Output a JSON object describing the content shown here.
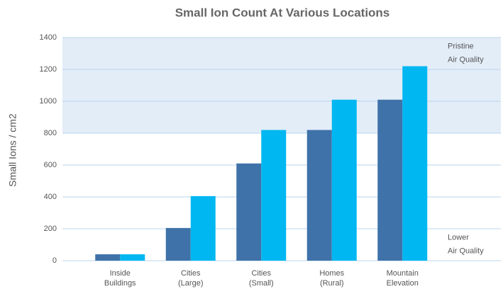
{
  "chart_data": {
    "type": "bar",
    "title": "Small Ion Count At Various Locations",
    "y_label": "Small Ions / cm2",
    "categories": [
      [
        "Inside",
        "Buildings"
      ],
      [
        "Cities",
        "(Large)"
      ],
      [
        "Cities",
        "(Small)"
      ],
      [
        "Homes",
        "(Rural)"
      ],
      [
        "Mountain",
        "Elevation"
      ]
    ],
    "series": [
      {
        "color": "#3f72a8",
        "values": [
          40,
          205,
          610,
          820,
          1010
        ]
      },
      {
        "color": "#00b7f1",
        "values": [
          40,
          405,
          820,
          1010,
          1220
        ]
      }
    ],
    "ylim": [
      0,
      1400
    ],
    "yticks": [
      0,
      200,
      400,
      600,
      800,
      1000,
      1200,
      1400
    ],
    "grid": true,
    "shaded_range": [
      800,
      1400
    ],
    "shade_color": "#e3edf8",
    "annotations": [
      {
        "text": [
          "Pristine",
          "Air Quality"
        ],
        "y": 1300
      },
      {
        "text": [
          "Lower",
          "Air Quality"
        ],
        "y": 100
      }
    ]
  }
}
